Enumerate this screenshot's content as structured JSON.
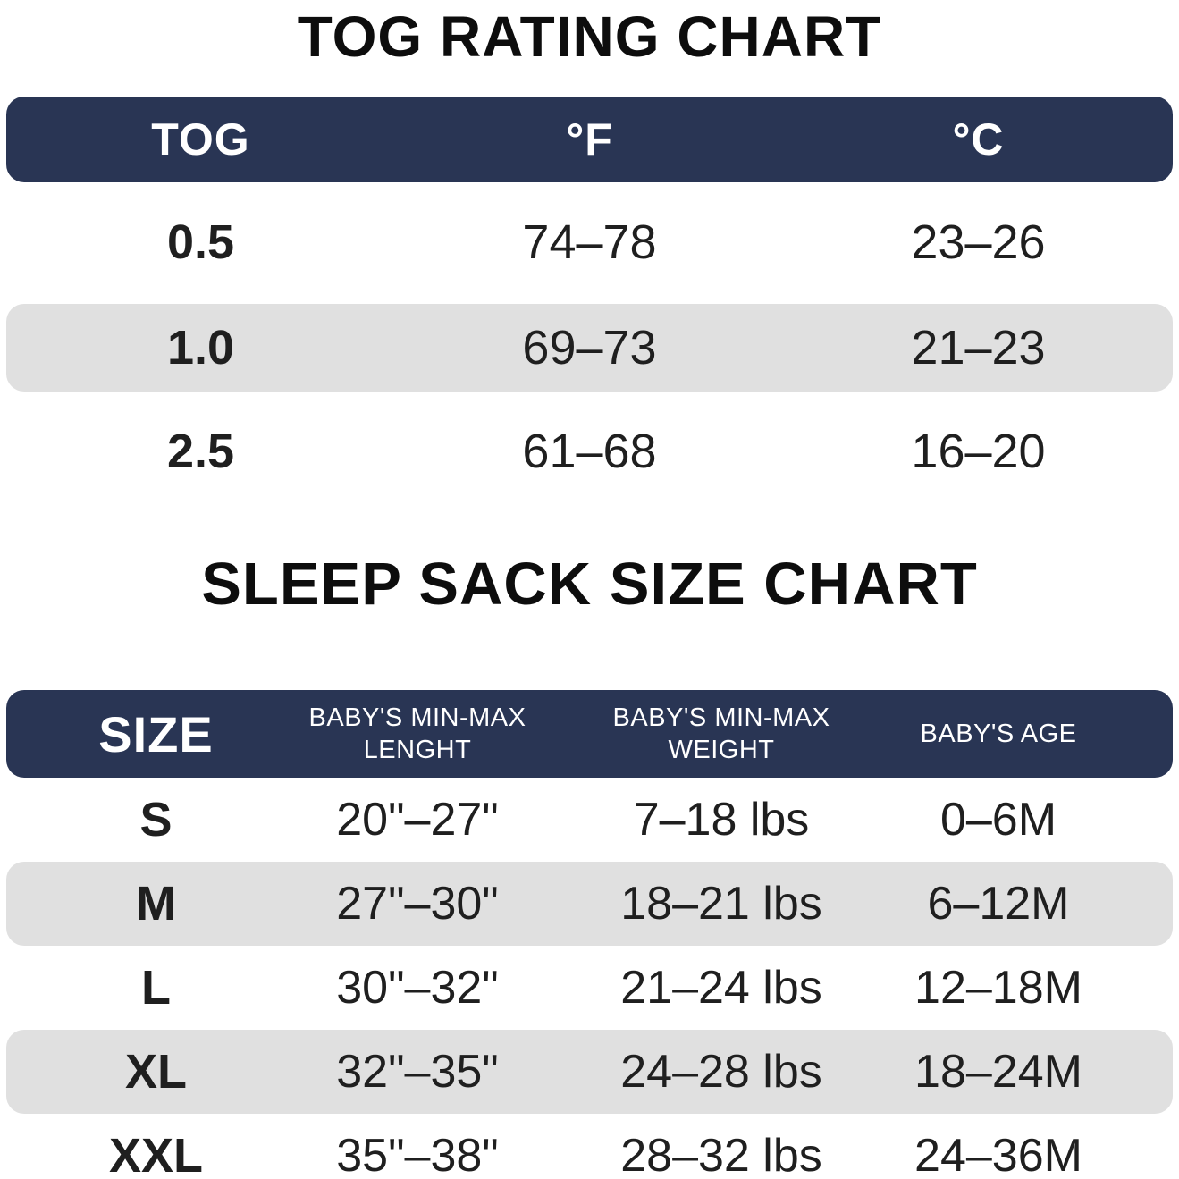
{
  "colors": {
    "header_bg": "#293554",
    "row_alt_bg": "#e0e0e0",
    "header_text": "#ffffff",
    "body_text": "#1f1f1f",
    "title_text": "#0d0d0d",
    "page_bg": "#ffffff"
  },
  "tog_chart": {
    "title": "TOG RATING CHART",
    "columns": [
      "TOG",
      "°F",
      "°C"
    ],
    "rows": [
      {
        "tog": "0.5",
        "fahrenheit": "74–78",
        "celsius": "23–26"
      },
      {
        "tog": "1.0",
        "fahrenheit": "69–73",
        "celsius": "21–23"
      },
      {
        "tog": "2.5",
        "fahrenheit": "61–68",
        "celsius": "16–20"
      }
    ]
  },
  "size_chart": {
    "title": "SLEEP SACK SIZE CHART",
    "columns": {
      "size": "SIZE",
      "length_line1": "BABY'S MIN-MAX",
      "length_line2": "LENGHT",
      "weight_line1": "BABY'S MIN-MAX",
      "weight_line2": "WEIGHT",
      "age": "BABY'S AGE"
    },
    "rows": [
      {
        "size": "S",
        "length": "20\"–27\"",
        "weight": "7–18 lbs",
        "age": "0–6M"
      },
      {
        "size": "M",
        "length": "27\"–30\"",
        "weight": "18–21 lbs",
        "age": "6–12M"
      },
      {
        "size": "L",
        "length": "30\"–32\"",
        "weight": "21–24 lbs",
        "age": "12–18M"
      },
      {
        "size": "XL",
        "length": "32\"–35\"",
        "weight": "24–28 lbs",
        "age": "18–24M"
      },
      {
        "size": "XXL",
        "length": "35\"–38\"",
        "weight": "28–32 lbs",
        "age": "24–36M"
      }
    ]
  },
  "chart_data": [
    {
      "type": "table",
      "title": "TOG RATING CHART",
      "columns": [
        "TOG",
        "°F",
        "°C"
      ],
      "rows": [
        [
          "0.5",
          "74–78",
          "23–26"
        ],
        [
          "1.0",
          "69–73",
          "21–23"
        ],
        [
          "2.5",
          "61–68",
          "16–20"
        ]
      ],
      "layout_hints": {
        "header_style": "navy rounded bar, white text",
        "shaded_rows": [
          1
        ],
        "shade_color": "#e0e0e0"
      }
    },
    {
      "type": "table",
      "title": "SLEEP SACK SIZE CHART",
      "columns": [
        "SIZE",
        "BABY'S MIN-MAX LENGHT",
        "BABY'S MIN-MAX WEIGHT",
        "BABY'S AGE"
      ],
      "rows": [
        [
          "S",
          "20\"–27\"",
          "7–18 lbs",
          "0–6M"
        ],
        [
          "M",
          "27\"–30\"",
          "18–21 lbs",
          "6–12M"
        ],
        [
          "L",
          "30\"–32\"",
          "21–24 lbs",
          "12–18M"
        ],
        [
          "XL",
          "32\"–35\"",
          "24–28 lbs",
          "18–24M"
        ],
        [
          "XXL",
          "35\"–38\"",
          "28–32 lbs",
          "24–36M"
        ]
      ],
      "layout_hints": {
        "header_style": "navy rounded bar, white text",
        "shaded_rows": [
          1,
          3
        ],
        "shade_color": "#e0e0e0"
      }
    }
  ]
}
